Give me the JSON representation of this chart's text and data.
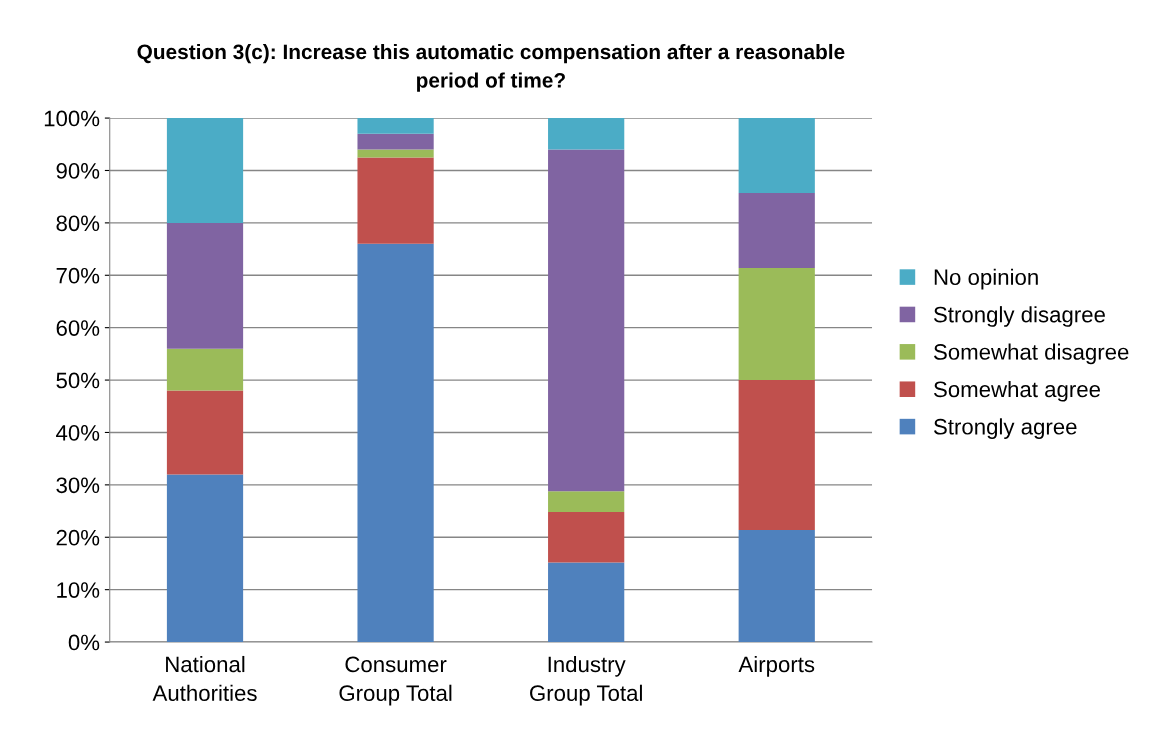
{
  "chart_data": {
    "type": "bar",
    "stacked": true,
    "title": "Question 3(c): Increase this automatic compensation after a reasonable\nperiod of time?",
    "categories": [
      "National\nAuthorities",
      "Consumer\nGroup Total",
      "Industry\nGroup Total",
      "Airports"
    ],
    "series": [
      {
        "name": "Strongly agree",
        "color": "#4f81bd",
        "values": [
          32,
          76,
          15.2,
          21.4
        ]
      },
      {
        "name": "Somewhat agree",
        "color": "#c0504d",
        "values": [
          16,
          16.5,
          9.6,
          28.6
        ]
      },
      {
        "name": "Somewhat disagree",
        "color": "#9bbb59",
        "values": [
          8,
          1.5,
          4,
          21.4
        ]
      },
      {
        "name": "Strongly disagree",
        "color": "#8064a2",
        "values": [
          24,
          3,
          65.2,
          14.3
        ]
      },
      {
        "name": "No opinion",
        "color": "#4bacc6",
        "values": [
          20,
          3,
          6,
          14.3
        ]
      }
    ],
    "ylim": [
      0,
      100
    ],
    "yticks": [
      {
        "value": 0,
        "label": "0%"
      },
      {
        "value": 10,
        "label": "10%"
      },
      {
        "value": 20,
        "label": "20%"
      },
      {
        "value": 30,
        "label": "30%"
      },
      {
        "value": 40,
        "label": "40%"
      },
      {
        "value": 50,
        "label": "50%"
      },
      {
        "value": 60,
        "label": "60%"
      },
      {
        "value": 70,
        "label": "70%"
      },
      {
        "value": 80,
        "label": "80%"
      },
      {
        "value": 90,
        "label": "90%"
      },
      {
        "value": 100,
        "label": "100%"
      }
    ],
    "grid": "y",
    "legend": "right"
  }
}
